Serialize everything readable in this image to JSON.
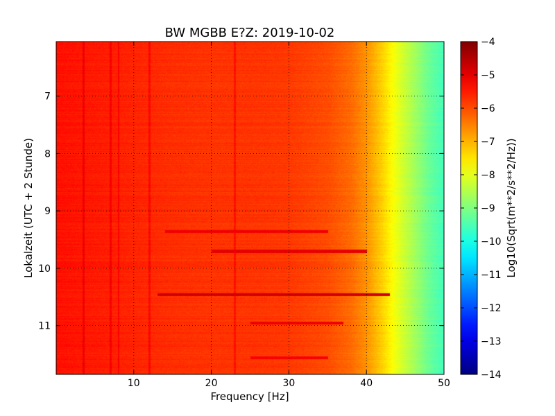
{
  "chart_data": {
    "type": "heatmap",
    "title": "BW MGBB E?Z: 2019-10-02",
    "xlabel": "Frequency [Hz]",
    "ylabel": "Lokalzeit (UTC + 2 Stunde)",
    "xlim": [
      0,
      50
    ],
    "ylim": [
      6.05,
      11.85
    ],
    "y_inverted": true,
    "x_ticks": [
      10,
      20,
      30,
      40,
      50
    ],
    "y_ticks": [
      7,
      8,
      9,
      10,
      11
    ],
    "grid": true,
    "colormap": "jet",
    "colorbar": {
      "label": "Log10(Sqrt(m**2/s**2/Hz))",
      "min": -14,
      "max": -4,
      "ticks": [
        -4,
        -5,
        -6,
        -7,
        -8,
        -9,
        -10,
        -11,
        -12,
        -13,
        -14
      ]
    },
    "spectrum_profile": {
      "frequency_hz": [
        0,
        5,
        10,
        15,
        20,
        25,
        30,
        35,
        38,
        40,
        42,
        44,
        46,
        48,
        50
      ],
      "level_log10": [
        -5.4,
        -5.5,
        -5.6,
        -5.7,
        -5.75,
        -5.75,
        -5.8,
        -6.0,
        -6.3,
        -6.7,
        -7.3,
        -8.0,
        -8.6,
        -9.2,
        -9.6
      ]
    },
    "vertical_lines_hz": [
      3.5,
      7,
      8,
      12,
      23
    ],
    "strong_bands": [
      {
        "time": 9.35,
        "f_from": 14,
        "f_to": 35,
        "level_log10": -5.1
      },
      {
        "time": 9.7,
        "f_from": 20,
        "f_to": 40,
        "level_log10": -5.0
      },
      {
        "time": 10.45,
        "f_from": 13,
        "f_to": 43,
        "level_log10": -4.8
      },
      {
        "time": 10.95,
        "f_from": 25,
        "f_to": 37,
        "level_log10": -5.1
      },
      {
        "time": 11.55,
        "f_from": 25,
        "f_to": 35,
        "level_log10": -5.2
      }
    ]
  }
}
